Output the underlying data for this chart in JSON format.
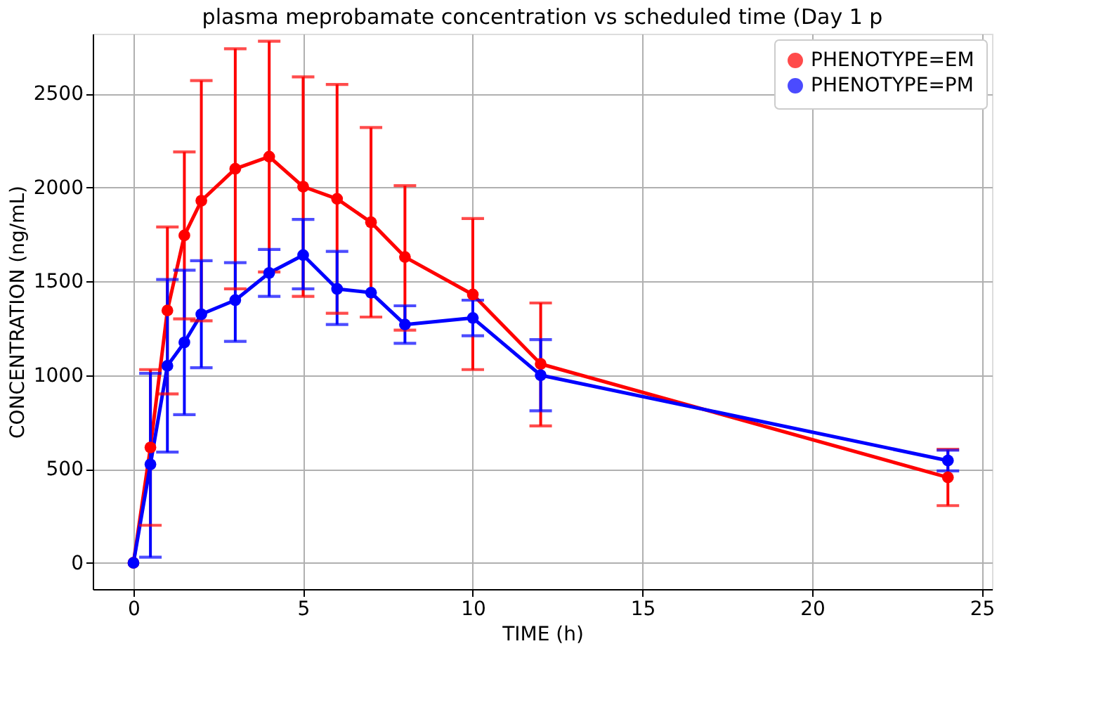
{
  "chart_data": {
    "type": "line",
    "title": "plasma meprobamate concentration vs scheduled time (Day 1 p",
    "xlabel": "TIME  (h)",
    "ylabel": "CONCENTRATION (ng/mL)",
    "x": [
      0,
      0.5,
      1,
      1.5,
      2,
      3,
      4,
      5,
      6,
      7,
      8,
      10,
      12,
      24
    ],
    "series": [
      {
        "name": "PHENOTYPE=EM",
        "color": "#ff0000",
        "values": [
          0,
          615,
          1345,
          1745,
          1930,
          2100,
          2165,
          2005,
          1940,
          1815,
          1630,
          1430,
          1060,
          455
        ],
        "errors": [
          null,
          [
            200,
            1030
          ],
          [
            900,
            1790
          ],
          [
            1300,
            2190
          ],
          [
            1290,
            2570
          ],
          [
            1460,
            2740
          ],
          [
            1550,
            2780
          ],
          [
            1420,
            2590
          ],
          [
            1330,
            2550
          ],
          [
            1310,
            2320
          ],
          [
            1240,
            2010
          ],
          [
            1030,
            1835
          ],
          [
            730,
            1385
          ],
          [
            305,
            605
          ]
        ]
      },
      {
        "name": "PHENOTYPE=PM",
        "color": "#0000ff",
        "values": [
          0,
          525,
          1050,
          1175,
          1325,
          1400,
          1545,
          1640,
          1460,
          1440,
          1270,
          1305,
          1000,
          545
        ],
        "errors": [
          null,
          [
            30,
            1010
          ],
          [
            590,
            1510
          ],
          [
            790,
            1560
          ],
          [
            1040,
            1610
          ],
          [
            1180,
            1600
          ],
          [
            1420,
            1670
          ],
          [
            1460,
            1830
          ],
          [
            1270,
            1660
          ],
          null,
          [
            1170,
            1370
          ],
          [
            1210,
            1400
          ],
          [
            810,
            1190
          ],
          [
            490,
            600
          ]
        ]
      }
    ],
    "xlim": [
      -1.2,
      25.3
    ],
    "ylim": [
      -140,
      2820
    ],
    "xticks": [
      0,
      5,
      10,
      15,
      20,
      25
    ],
    "yticks": [
      0,
      500,
      1000,
      1500,
      2000,
      2500
    ],
    "grid": true,
    "legend": "top right",
    "marker": "circle",
    "line_style": "solid"
  }
}
